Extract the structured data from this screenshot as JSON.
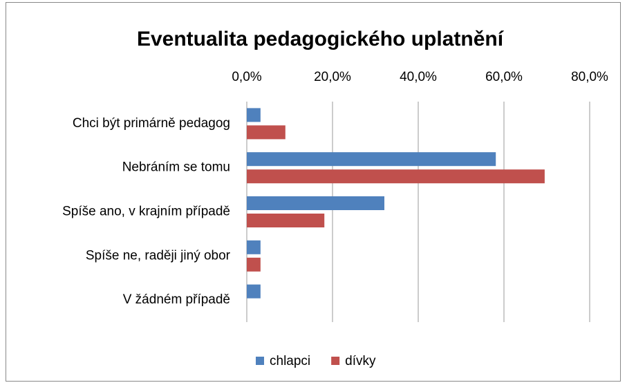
{
  "chart_data": {
    "type": "bar",
    "orientation": "horizontal",
    "title": "Eventualita pedagogického uplatnění",
    "categories": [
      "Chci být primárně pedagog",
      "Nebráním se tomu",
      "Spíše ano, v krajním případě",
      "Spíše ne, raději jiný obor",
      "V žádném případě"
    ],
    "series": [
      {
        "name": "chlapci",
        "color": "#4f81bd",
        "values": [
          3.2,
          58.1,
          32.1,
          3.2,
          3.2
        ]
      },
      {
        "name": "dívky",
        "color": "#c0504d",
        "values": [
          9.0,
          69.5,
          18.1,
          3.2,
          0
        ]
      }
    ],
    "xlim": [
      0,
      80
    ],
    "xticks": [
      {
        "value": 0,
        "label": "0,0%"
      },
      {
        "value": 20,
        "label": "20,0%"
      },
      {
        "value": 40,
        "label": "40,0%"
      },
      {
        "value": 60,
        "label": "60,0%"
      },
      {
        "value": 80,
        "label": "80,0%"
      }
    ],
    "grid": true,
    "legend": "bottom"
  }
}
